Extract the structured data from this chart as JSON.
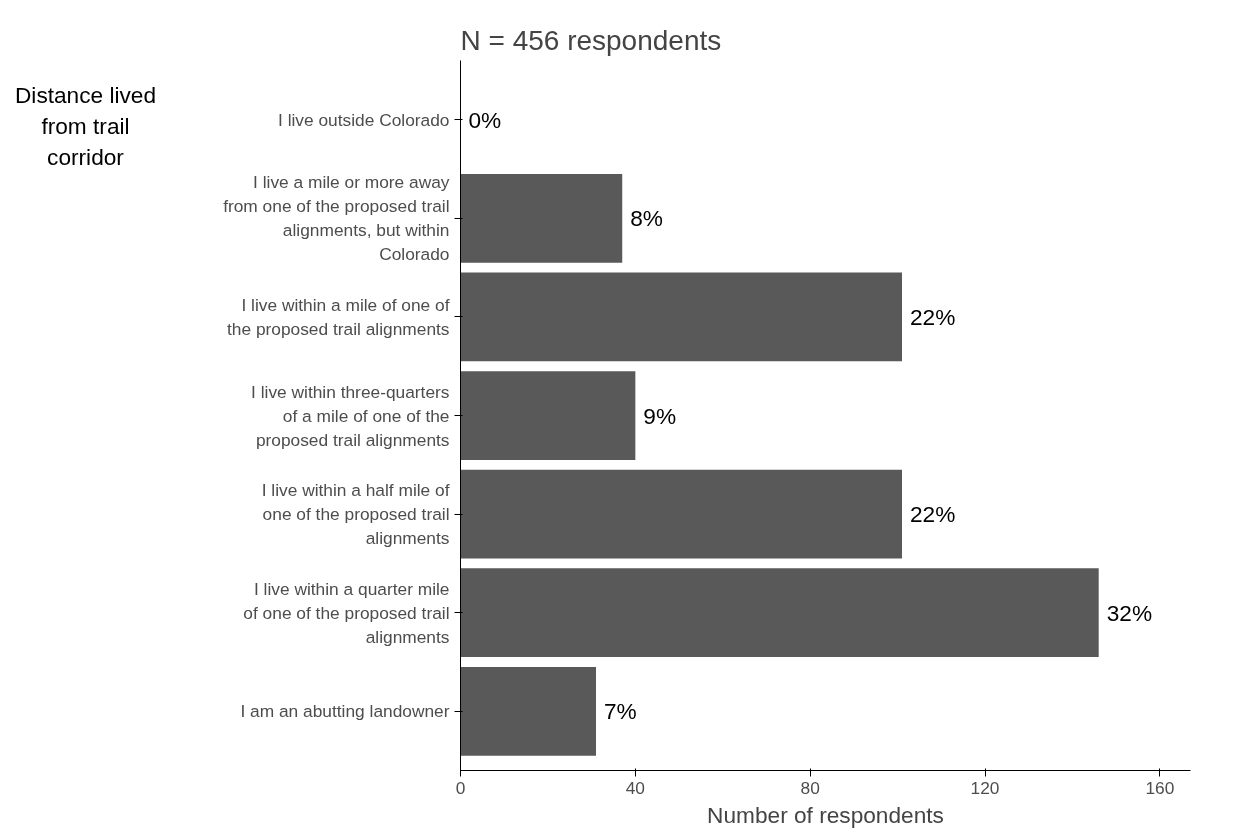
{
  "chart_data": {
    "type": "bar",
    "orientation": "horizontal",
    "title": "N = 456 respondents",
    "xlabel": "Number of respondents",
    "ylabel": "Distance lived from trail corridor",
    "categories": [
      "I live outside Colorado",
      "I live a mile or more away from one of the proposed trail alignments, but within Colorado",
      "I live within a mile of one of the proposed trail alignments",
      "I live within three-quarters of a mile of one of the proposed trail alignments",
      "I live within a half mile of one of the proposed trail alignments",
      "I live within a quarter mile of one of the proposed trail alignments",
      "I am an abutting landowner"
    ],
    "values": [
      0,
      37,
      101,
      40,
      101,
      146,
      31
    ],
    "annotations": [
      {
        "text": "0%",
        "x": 0,
        "y": "I live outside Colorado"
      },
      {
        "text": "8%",
        "x": 37,
        "y": "I live a mile or more away from one of the proposed trail alignments, but within Colorado"
      },
      {
        "text": "22%",
        "x": 101,
        "y": "I live within a mile of one of the proposed trail alignments"
      },
      {
        "text": "9%",
        "x": 40,
        "y": "I live within three-quarters of a mile of one of the proposed trail alignments"
      },
      {
        "text": "22%",
        "x": 101,
        "y": "I live within a half mile of one of the proposed trail alignments"
      },
      {
        "text": "32%",
        "x": 146,
        "y": "I live within a quarter mile of one of the proposed trail alignments"
      },
      {
        "text": "7%",
        "x": 31,
        "y": "I am an abutting landowner"
      }
    ],
    "color": "#595959",
    "xlim": [
      0,
      167
    ],
    "xticks": [
      0,
      40,
      80,
      120,
      160
    ],
    "grid": false,
    "legend": false
  }
}
